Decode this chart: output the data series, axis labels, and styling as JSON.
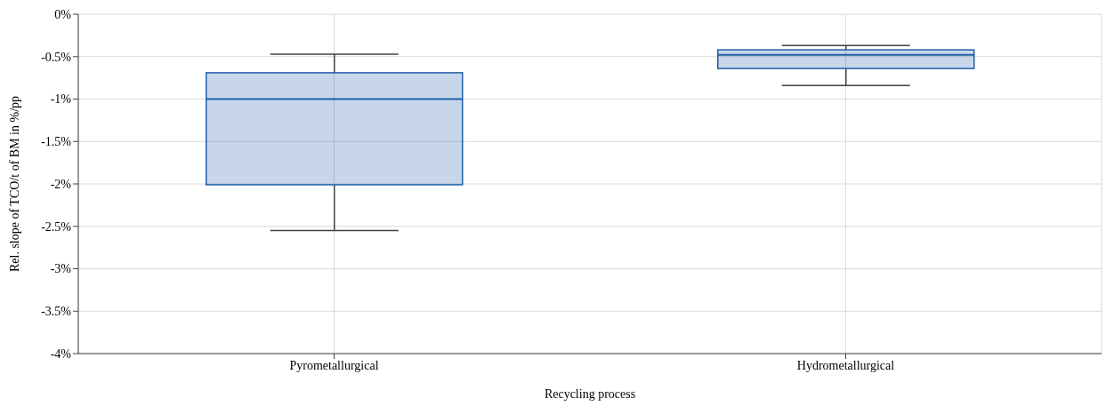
{
  "chart_data": {
    "type": "box",
    "xlabel": "Recycling process",
    "ylabel": "Rel. slope of TCO/t of BM in %/pp",
    "categories": [
      "Pyrometallurgical",
      "Hydrometallurgical"
    ],
    "series": [
      {
        "color": "#1f5fa8",
        "boxes": [
          {
            "low": -2.55,
            "q1": -2.01,
            "median": -1.0,
            "q3": -0.69,
            "high": -0.47
          },
          {
            "low": -0.84,
            "q1": -0.64,
            "median": -0.48,
            "q3": -0.42,
            "high": -0.37
          }
        ]
      }
    ],
    "ylim": [
      -4,
      0
    ],
    "yticks": [
      {
        "value": -4,
        "label": "-4%"
      },
      {
        "value": -3.5,
        "label": "-3.5%"
      },
      {
        "value": -3,
        "label": "-3%"
      },
      {
        "value": -2.5,
        "label": "-2.5%"
      },
      {
        "value": -2,
        "label": "-2%"
      },
      {
        "value": -1.5,
        "label": "-1.5%"
      },
      {
        "value": -1,
        "label": "-1%"
      },
      {
        "value": -0.5,
        "label": "-0.5%"
      },
      {
        "value": 0,
        "label": "0%"
      }
    ],
    "grid": true
  }
}
